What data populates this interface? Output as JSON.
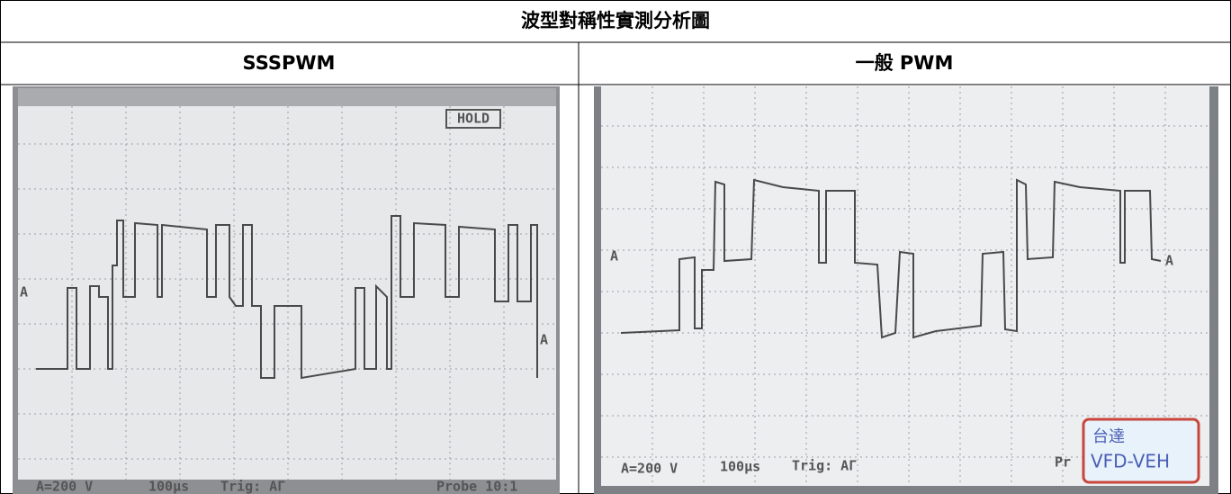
{
  "header": {
    "title": "波型對稱性實測分析圖"
  },
  "table": {
    "columns": [
      "SSSPWM",
      "一般 PWM"
    ]
  },
  "panels": [
    {
      "hold": "HOLD",
      "marker_left": "A",
      "marker_right": "A",
      "status": [
        "A=200 V",
        "100µs",
        "Trig: AΓ",
        "Probe 10:1"
      ]
    },
    {
      "marker_left": "A",
      "marker_right": "A",
      "status": [
        "A=200 V",
        "100µs",
        "Trig: AΓ",
        "Pr"
      ],
      "stamp": [
        "台達",
        "VFD-VEH"
      ]
    }
  ]
}
